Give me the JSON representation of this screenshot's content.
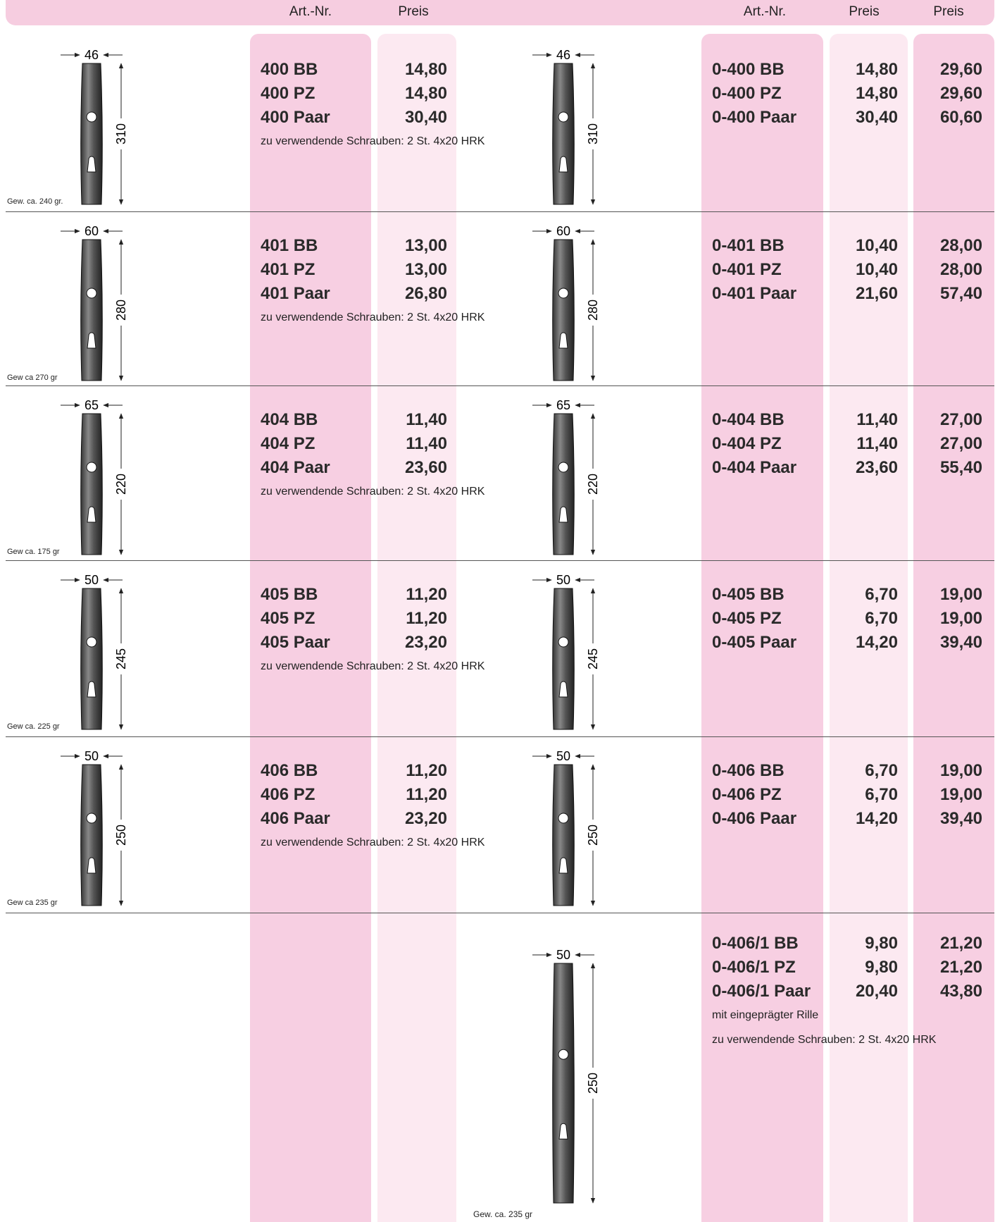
{
  "header": {
    "left_art": "Art.-Nr.",
    "left_price": "Preis",
    "right_art": "Art.-Nr.",
    "right_price": "Preis",
    "right_price2": "Preis"
  },
  "rows": [
    {
      "left": {
        "width_dim": "46",
        "height_dim": "310",
        "weight": "Gew. ca. 240 gr.",
        "items": [
          {
            "art": "400 BB",
            "price": "14,80"
          },
          {
            "art": "400 PZ",
            "price": "14,80"
          },
          {
            "art": "400 Paar",
            "price": "30,40"
          }
        ],
        "notes": [
          "zu verwendende Schrauben: 2 St. 4x20 HRK"
        ]
      },
      "right": {
        "width_dim": "46",
        "height_dim": "310",
        "items": [
          {
            "art": "0-400 BB",
            "price": "14,80",
            "price2": "29,60"
          },
          {
            "art": "0-400 PZ",
            "price": "14,80",
            "price2": "29,60"
          },
          {
            "art": "0-400 Paar",
            "price": "30,40",
            "price2": "60,60"
          }
        ],
        "notes": []
      }
    },
    {
      "left": {
        "width_dim": "60",
        "height_dim": "280",
        "weight": "Gew ca 270 gr",
        "items": [
          {
            "art": "401 BB",
            "price": "13,00"
          },
          {
            "art": "401 PZ",
            "price": "13,00"
          },
          {
            "art": "401 Paar",
            "price": "26,80"
          }
        ],
        "notes": [
          "zu verwendende Schrauben: 2 St. 4x20 HRK"
        ]
      },
      "right": {
        "width_dim": "60",
        "height_dim": "280",
        "items": [
          {
            "art": "0-401 BB",
            "price": "10,40",
            "price2": "28,00"
          },
          {
            "art": "0-401 PZ",
            "price": "10,40",
            "price2": "28,00"
          },
          {
            "art": "0-401 Paar",
            "price": "21,60",
            "price2": "57,40"
          }
        ],
        "notes": []
      }
    },
    {
      "left": {
        "width_dim": "65",
        "height_dim": "220",
        "weight": "Gew ca. 175 gr",
        "items": [
          {
            "art": "404 BB",
            "price": "11,40"
          },
          {
            "art": "404 PZ",
            "price": "11,40"
          },
          {
            "art": "404 Paar",
            "price": "23,60"
          }
        ],
        "notes": [
          "zu verwendende Schrauben: 2 St. 4x20 HRK"
        ]
      },
      "right": {
        "width_dim": "65",
        "height_dim": "220",
        "items": [
          {
            "art": "0-404 BB",
            "price": "11,40",
            "price2": "27,00"
          },
          {
            "art": "0-404 PZ",
            "price": "11,40",
            "price2": "27,00"
          },
          {
            "art": "0-404 Paar",
            "price": "23,60",
            "price2": "55,40"
          }
        ],
        "notes": []
      }
    },
    {
      "left": {
        "width_dim": "50",
        "height_dim": "245",
        "weight": "Gew ca. 225 gr",
        "items": [
          {
            "art": "405 BB",
            "price": "11,20"
          },
          {
            "art": "405 PZ",
            "price": "11,20"
          },
          {
            "art": "405 Paar",
            "price": "23,20"
          }
        ],
        "notes": [
          "zu verwendende Schrauben: 2 St. 4x20 HRK"
        ]
      },
      "right": {
        "width_dim": "50",
        "height_dim": "245",
        "items": [
          {
            "art": "0-405 BB",
            "price": "6,70",
            "price2": "19,00"
          },
          {
            "art": "0-405 PZ",
            "price": "6,70",
            "price2": "19,00"
          },
          {
            "art": "0-405 Paar",
            "price": "14,20",
            "price2": "39,40"
          }
        ],
        "notes": []
      }
    },
    {
      "left": {
        "width_dim": "50",
        "height_dim": "250",
        "weight": "Gew ca 235 gr",
        "items": [
          {
            "art": "406 BB",
            "price": "11,20"
          },
          {
            "art": "406 PZ",
            "price": "11,20"
          },
          {
            "art": "406 Paar",
            "price": "23,20"
          }
        ],
        "notes": [
          "zu verwendende Schrauben: 2 St. 4x20 HRK"
        ]
      },
      "right": {
        "width_dim": "50",
        "height_dim": "250",
        "items": [
          {
            "art": "0-406 BB",
            "price": "6,70",
            "price2": "19,00"
          },
          {
            "art": "0-406 PZ",
            "price": "6,70",
            "price2": "19,00"
          },
          {
            "art": "0-406 Paar",
            "price": "14,20",
            "price2": "39,40"
          }
        ],
        "notes": []
      }
    },
    {
      "right": {
        "width_dim": "50",
        "height_dim": "250",
        "weight": "Gew. ca. 235 gr",
        "items": [
          {
            "art": "0-406/1 BB",
            "price": "9,80",
            "price2": "21,20"
          },
          {
            "art": "0-406/1 PZ",
            "price": "9,80",
            "price2": "21,20"
          },
          {
            "art": "0-406/1 Paar",
            "price": "20,40",
            "price2": "43,80"
          }
        ],
        "notes": [
          "mit eingeprägter Rille",
          "zu verwendende Schrauben: 2 St. 4x20 HRK"
        ]
      }
    }
  ]
}
